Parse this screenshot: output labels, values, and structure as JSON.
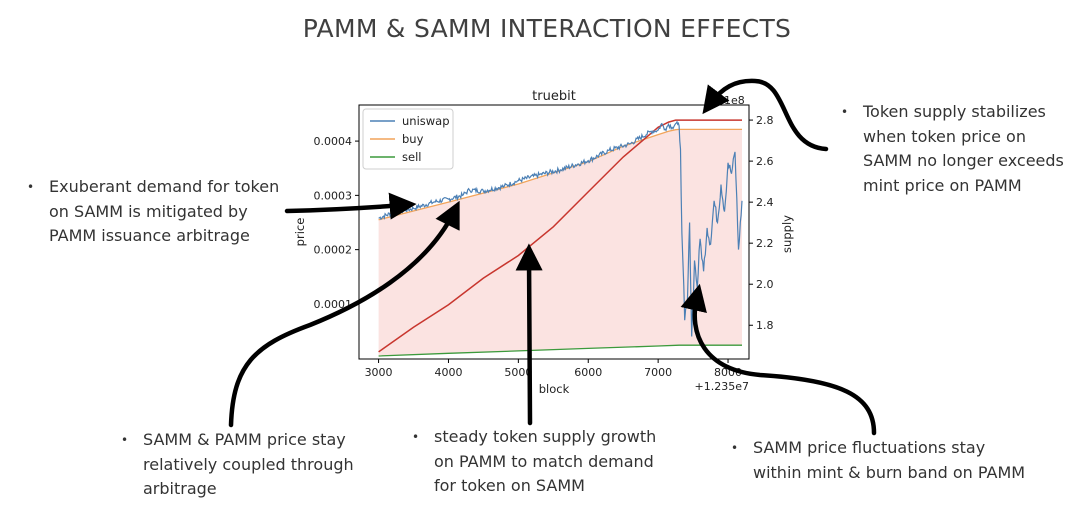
{
  "title": "PAMM & SAMM INTERACTION EFFECTS",
  "annotations": [
    {
      "id": "demand",
      "bullet": "•",
      "lines": [
        "Exuberant demand for token",
        "on SAMM is mitigated by",
        "PAMM issuance arbitrage"
      ]
    },
    {
      "id": "stabilize",
      "bullet": "•",
      "lines": [
        "Token supply stabilizes",
        "when token price on",
        "SAMM no longer exceeds",
        "mint price on PAMM"
      ]
    },
    {
      "id": "coupled",
      "bullet": "•",
      "lines": [
        "SAMM & PAMM price stay",
        "relatively coupled through",
        "arbitrage"
      ]
    },
    {
      "id": "steady",
      "bullet": "•",
      "lines": [
        "steady token supply growth",
        "on PAMM to match demand",
        "for token on SAMM"
      ]
    },
    {
      "id": "fluct",
      "bullet": "•",
      "lines": [
        "SAMM price fluctuations stay",
        "within mint & burn band on PAMM"
      ]
    }
  ],
  "colors": {
    "uniswap": "#4c80b5",
    "buy": "#f2a45a",
    "sell": "#3c9a3c",
    "supply": "#c8362e",
    "band": "#fbe3e1",
    "text": "#333333"
  },
  "chart_data": {
    "type": "line",
    "title": "truebit",
    "xlabel": "block",
    "ylabel": "price",
    "y2label": "supply",
    "x_offset_text": "+1.235e7",
    "y2_offset_text": "1e8",
    "xlim": [
      2720,
      8300
    ],
    "ylim": [
      -1.5e-06,
      0.0004665
    ],
    "y2lim": [
      1.6355,
      2.8735
    ],
    "xticks": [
      3000,
      4000,
      5000,
      6000,
      7000,
      8000
    ],
    "xtick_labels": [
      "3000",
      "4000",
      "5000",
      "6000",
      "7000",
      "8000"
    ],
    "yticks": [
      0.0001,
      0.0002,
      0.0003,
      0.0004
    ],
    "ytick_labels": [
      "0.0001",
      "0.0002",
      "0.0003",
      "0.0004"
    ],
    "y2ticks": [
      1.8,
      2.0,
      2.2,
      2.4,
      2.6,
      2.8
    ],
    "y2tick_labels": [
      "1.8",
      "2.0",
      "2.2",
      "2.4",
      "2.6",
      "2.8"
    ],
    "legend": [
      "uniswap",
      "buy",
      "sell"
    ],
    "legend_position": "upper left",
    "series": [
      {
        "name": "buy",
        "axis": "left",
        "x": [
          3000,
          4000,
          5000,
          6000,
          6500,
          7000,
          7150,
          7250,
          7300,
          8200
        ],
        "y": [
          0.000255,
          0.0002875,
          0.000321,
          0.000362,
          0.0003905,
          0.000412,
          0.000418,
          0.000421,
          0.0004215,
          0.0004215
        ]
      },
      {
        "name": "sell",
        "axis": "left",
        "x": [
          3000,
          4000,
          5000,
          6000,
          7000,
          7300,
          8200
        ],
        "y": [
          4e-06,
          9e-06,
          1.35e-05,
          1.8e-05,
          2.25e-05,
          2.4e-05,
          2.4e-05
        ]
      },
      {
        "name": "uniswap",
        "axis": "left",
        "x": [
          3000,
          3200,
          3500,
          3800,
          4000,
          4200,
          4300,
          4500,
          4800,
          5000,
          5300,
          5600,
          6000,
          6300,
          6600,
          6900,
          7000,
          7050,
          7100,
          7150,
          7200,
          7250,
          7280,
          7300,
          7320,
          7340,
          7380,
          7420,
          7450,
          7480,
          7520,
          7560,
          7600,
          7650,
          7700,
          7750,
          7800,
          7850,
          7900,
          7950,
          8000,
          8050,
          8100,
          8150,
          8200
        ],
        "y": [
          0.000258,
          0.000268,
          0.000276,
          0.000288,
          0.000293,
          0.0003,
          0.00031,
          0.000308,
          0.000317,
          0.000327,
          0.000338,
          0.000347,
          0.000364,
          0.000383,
          0.000395,
          0.000418,
          0.00042,
          0.000432,
          0.000422,
          0.000431,
          0.000425,
          0.000432,
          0.000431,
          0.000428,
          0.000385,
          0.00023,
          7e-05,
          0.00011,
          0.00025,
          4e-05,
          0.00018,
          0.00013,
          0.00022,
          0.00016,
          0.00024,
          0.00021,
          0.00029,
          0.00025,
          0.00032,
          0.00027,
          0.00036,
          0.00034,
          0.00038,
          0.0002,
          0.00029
        ]
      },
      {
        "name": "supply",
        "axis": "right",
        "x": [
          3000,
          3500,
          4000,
          4500,
          5000,
          5500,
          6000,
          6500,
          7000,
          7150,
          7250,
          7300,
          8200
        ],
        "y": [
          1.67,
          1.79,
          1.9,
          2.03,
          2.14,
          2.28,
          2.45,
          2.62,
          2.765,
          2.79,
          2.8,
          2.8,
          2.8
        ]
      }
    ]
  }
}
